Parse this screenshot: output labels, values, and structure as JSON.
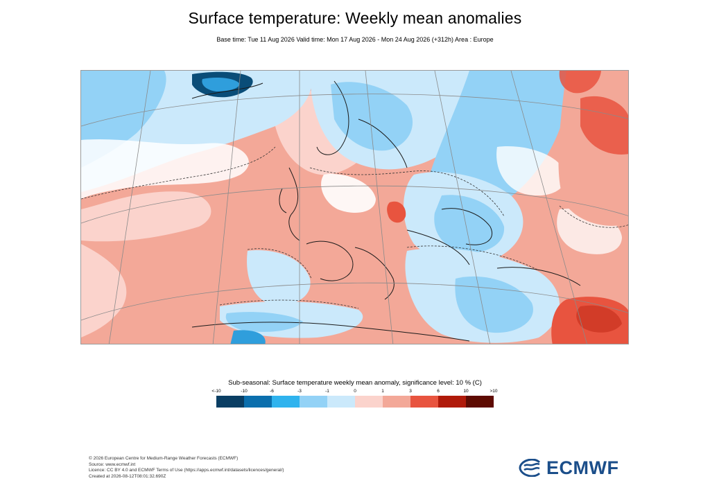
{
  "header": {
    "title": "Surface temperature: Weekly mean anomalies",
    "subtitle": "Base time: Tue 11 Aug 2026 Valid time: Mon 17 Aug 2026 - Mon 24 Aug 2026 (+312h) Area : Europe"
  },
  "map": {
    "region": "Europe",
    "colors": {
      "strong_warm": "#e8543f",
      "warm": "#f3a898",
      "light_warm": "#fbd3cc",
      "neutral": "#ffffff",
      "light_cool": "#cbe9fb",
      "cool": "#93d2f6",
      "strong_cool": "#2f9edc",
      "very_cool": "#0a4d78",
      "land_outline": "#1a1a1a",
      "graticule": "#8a8a8a"
    }
  },
  "colorbar": {
    "title": "Sub-seasonal: Surface temperature weekly mean anomaly, significance level: 10 % (C)",
    "labels": [
      "<-10",
      "-10",
      "-6",
      "-3",
      "-1",
      "0",
      "1",
      "3",
      "6",
      "10",
      ">10"
    ],
    "colors": [
      "#0a3e63",
      "#0b6fad",
      "#2fb3ee",
      "#93d2f6",
      "#cbe9fb",
      "#fbd3cc",
      "#f3a898",
      "#e8543f",
      "#b01a0a",
      "#5e0b02"
    ]
  },
  "footer": {
    "lines": [
      "© 2026 European Centre for Medium-Range Weather Forecasts (ECMWF)",
      "Source: www.ecmwf.int",
      "Licence: CC BY 4.0 and ECMWF Terms of Use (https://apps.ecmwf.int/datasets/licences/general/)",
      "Created at 2026-08-12T08:01:32.690Z"
    ]
  },
  "logo": {
    "text": "ECMWF",
    "color": "#1b4e8a"
  }
}
